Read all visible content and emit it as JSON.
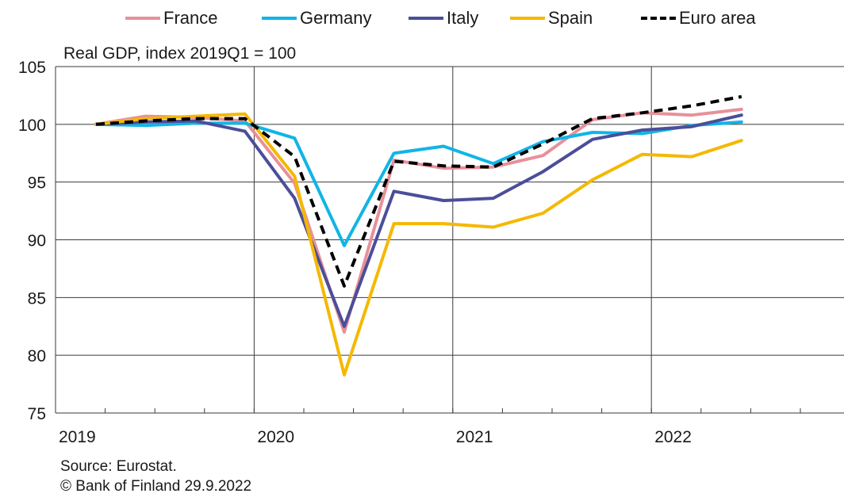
{
  "legend": {
    "items": [
      {
        "name": "France",
        "color": "#E8909A",
        "dashed": false
      },
      {
        "name": "Germany",
        "color": "#10B5E6",
        "dashed": false
      },
      {
        "name": "Italy",
        "color": "#4B4E99",
        "dashed": false
      },
      {
        "name": "Spain",
        "color": "#F5B800",
        "dashed": false
      },
      {
        "name": "Euro area",
        "color": "#000000",
        "dashed": true
      }
    ]
  },
  "source": {
    "line1": "Source: Eurostat.",
    "line2": "© Bank of Finland 29.9.2022"
  },
  "chart_data": {
    "type": "line",
    "title": "Real GDP, index 2019Q1 = 100",
    "xlabel": "",
    "ylabel": "",
    "x": [
      "2019Q1",
      "2019Q2",
      "2019Q3",
      "2019Q4",
      "2020Q1",
      "2020Q2",
      "2020Q3",
      "2020Q4",
      "2021Q1",
      "2021Q2",
      "2021Q3",
      "2021Q4",
      "2022Q1",
      "2022Q2"
    ],
    "x_year_labels": [
      "2019",
      "2020",
      "2021",
      "2022"
    ],
    "ylim": [
      75,
      105
    ],
    "yticks": [
      75,
      80,
      85,
      90,
      95,
      100,
      105
    ],
    "grid": true,
    "legend_position": "top",
    "series": [
      {
        "name": "France",
        "values": [
          100,
          100.7,
          100.6,
          100.3,
          94.9,
          82.0,
          96.9,
          96.2,
          96.3,
          97.3,
          100.4,
          101.0,
          100.8,
          101.3
        ]
      },
      {
        "name": "Germany",
        "values": [
          100,
          99.9,
          100.1,
          100.1,
          98.8,
          89.5,
          97.5,
          98.1,
          96.6,
          98.5,
          99.3,
          99.2,
          99.9,
          100.2
        ]
      },
      {
        "name": "Italy",
        "values": [
          100,
          100.2,
          100.3,
          99.4,
          93.6,
          82.5,
          94.2,
          93.4,
          93.6,
          95.9,
          98.7,
          99.5,
          99.8,
          100.8
        ]
      },
      {
        "name": "Spain",
        "values": [
          100,
          100.5,
          100.7,
          100.9,
          95.5,
          78.3,
          91.4,
          91.4,
          91.1,
          92.3,
          95.2,
          97.4,
          97.2,
          98.6
        ]
      },
      {
        "name": "Euro area",
        "values": [
          100,
          100.3,
          100.5,
          100.5,
          97.2,
          86.0,
          96.8,
          96.4,
          96.3,
          98.3,
          100.5,
          101.0,
          101.6,
          102.4
        ]
      }
    ]
  }
}
